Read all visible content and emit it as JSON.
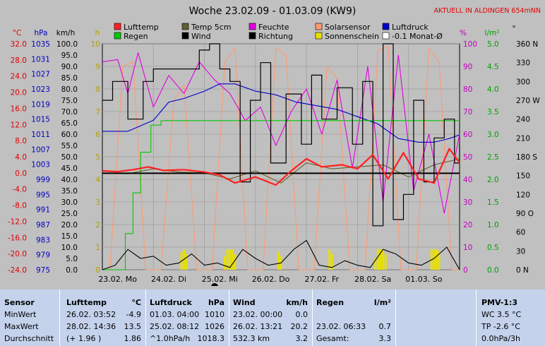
{
  "title": "Woche 23.02.09 - 01.03.09 (KW9)",
  "location_note": "AKTUELL IN ALDINGEN 654mNN",
  "colors": {
    "lufttemp": "#ff2020",
    "temp5cm": "#606030",
    "feuchte": "#e000e0",
    "solarsensor": "#ff9a70",
    "luftdruck": "#0000c8",
    "regen": "#00c800",
    "wind": "#000000",
    "richtung": "#000000",
    "sonnenschein": "#e8e000",
    "monat": "#000000",
    "grid": "#a0a0a0",
    "plot_bg": "#c0c0c0"
  },
  "legend": [
    {
      "key": "lufttemp",
      "label": "Lufttemp",
      "swatch": "#ff2020"
    },
    {
      "key": "temp5cm",
      "label": "Temp 5cm",
      "swatch": "#606030"
    },
    {
      "key": "feuchte",
      "label": "Feuchte",
      "swatch": "#e000e0"
    },
    {
      "key": "solarsensor",
      "label": "Solarsensor",
      "swatch": "#ff9a70"
    },
    {
      "key": "luftdruck",
      "label": "Luftdruck",
      "swatch": "#0000c8"
    },
    {
      "key": "regen",
      "label": "Regen",
      "swatch": "#00c800"
    },
    {
      "key": "wind",
      "label": "Wind",
      "swatch": "#000000"
    },
    {
      "key": "richtung",
      "label": "Richtung",
      "swatch": "#000000"
    },
    {
      "key": "sonnenschein",
      "label": "Sonnenschein",
      "swatch": "#e8e000"
    },
    {
      "key": "monat",
      "label": "-0.1 Monat-Ø",
      "swatch": "#ffffff"
    }
  ],
  "axes": {
    "temp": {
      "unit": "°C",
      "color": "#e00000",
      "labels": [
        "32.0",
        "28.0",
        "24.0",
        "20.0",
        "16.0",
        "12.0",
        "8.0",
        "4.0",
        "0.0",
        "-4.0",
        "-8.0",
        "-12.0",
        "-16.0",
        "-20.0",
        "-24.0"
      ]
    },
    "pressure": {
      "unit": "hPa",
      "color": "#0000c0",
      "labels": [
        "1035",
        "1031",
        "1027",
        "1023",
        "1019",
        "1015",
        "1011",
        "1007",
        "1003",
        "999",
        "995",
        "991",
        "987",
        "983",
        "979",
        "975"
      ]
    },
    "wind": {
      "unit": "km/h",
      "color": "#000000",
      "labels": [
        "100.0",
        "95.0",
        "90.0",
        "85.0",
        "80.0",
        "75.0",
        "70.0",
        "65.0",
        "60.0",
        "55.0",
        "50.0",
        "45.0",
        "40.0",
        "35.0",
        "30.0",
        "25.0",
        "20.0",
        "15.0",
        "10.0",
        "5.0",
        "0.0"
      ]
    },
    "sun": {
      "unit": "h",
      "color": "#b0a000",
      "labels": [
        "10",
        "9",
        "8",
        "7",
        "6",
        "5",
        "4",
        "3",
        "2",
        "1",
        "0"
      ]
    },
    "humidity": {
      "unit": "%",
      "color": "#c000c0",
      "labels": [
        "100",
        "90",
        "80",
        "70",
        "60",
        "50",
        "40",
        "30",
        "20",
        "10",
        "0"
      ]
    },
    "rain": {
      "unit": "l/m²",
      "color": "#00a000",
      "labels": [
        "5.0",
        "4.5",
        "4.0",
        "3.5",
        "3.0",
        "2.5",
        "2.0",
        "1.5",
        "1.0",
        "0.5",
        "0.0"
      ]
    },
    "direction": {
      "unit": "°",
      "color": "#000000",
      "labels": [
        "360 N",
        "330",
        "300",
        "270 W",
        "240",
        "210",
        "180 S",
        "150",
        "120",
        "90 O",
        "60",
        "30",
        "0 N"
      ]
    }
  },
  "x_labels": [
    "23.02. Mo",
    "24.02. Di",
    "25.02. Mi",
    "26.02. Do",
    "27.02. Fr",
    "28.02. Sa",
    "01.03. So"
  ],
  "chart_data": {
    "type": "line",
    "title": "Woche 23.02.09 - 01.03.09 (KW9)",
    "x_unit": "days since 23.02.09 00:00",
    "xlim": [
      0,
      7
    ],
    "series": [
      {
        "name": "Lufttemp",
        "unit": "°C",
        "ylim": [
          -24,
          32
        ],
        "x": [
          0,
          0.3,
          0.6,
          0.9,
          1.2,
          1.6,
          2.0,
          2.3,
          2.6,
          3.0,
          3.4,
          3.7,
          4.0,
          4.3,
          4.7,
          5.0,
          5.3,
          5.6,
          5.9,
          6.2,
          6.5,
          6.8,
          7.0
        ],
        "values": [
          0.5,
          0.3,
          0.8,
          1.5,
          0.6,
          0.8,
          0.2,
          -0.5,
          -2.5,
          -1.0,
          -3.0,
          0.5,
          3.5,
          1.5,
          2.0,
          1.0,
          4.5,
          -1.5,
          5.0,
          -1.5,
          -2.5,
          6.0,
          2.5
        ]
      },
      {
        "name": "Temp 5cm",
        "unit": "°C",
        "ylim": [
          -24,
          32
        ],
        "x": [
          0,
          0.5,
          1.0,
          1.5,
          2.0,
          2.5,
          3.0,
          3.5,
          4.0,
          4.5,
          5.0,
          5.5,
          6.0,
          6.5,
          7.0
        ],
        "values": [
          0.0,
          -0.2,
          1.0,
          0.2,
          0.0,
          -1.5,
          0.5,
          -2.5,
          2.5,
          1.0,
          1.5,
          2.0,
          -1.0,
          2.0,
          3.5
        ]
      },
      {
        "name": "Feuchte",
        "unit": "%",
        "ylim": [
          0,
          100
        ],
        "x": [
          0,
          0.3,
          0.5,
          0.7,
          1.0,
          1.3,
          1.6,
          1.9,
          2.2,
          2.5,
          2.8,
          3.1,
          3.4,
          3.7,
          4.0,
          4.3,
          4.6,
          4.9,
          5.2,
          5.5,
          5.8,
          6.1,
          6.4,
          6.7,
          7.0
        ],
        "values": [
          92,
          93,
          78,
          96,
          72,
          86,
          78,
          92,
          84,
          78,
          66,
          72,
          55,
          70,
          80,
          60,
          84,
          45,
          90,
          30,
          95,
          35,
          60,
          25,
          60
        ]
      },
      {
        "name": "Solarsensor",
        "unit": "%",
        "ylim": [
          0,
          100
        ],
        "x": [
          0,
          0.15,
          0.4,
          0.6,
          0.85,
          1.15,
          1.4,
          1.6,
          1.85,
          2.15,
          2.4,
          2.6,
          2.85,
          3.15,
          3.4,
          3.6,
          3.85,
          4.15,
          4.4,
          4.6,
          4.85,
          5.15,
          5.4,
          5.6,
          5.85,
          6.15,
          6.4,
          6.6,
          6.85,
          7.0
        ],
        "values": [
          0,
          0,
          90,
          92,
          0,
          0,
          75,
          82,
          0,
          0,
          92,
          98,
          0,
          0,
          98,
          95,
          0,
          0,
          90,
          85,
          0,
          0,
          97,
          99,
          0,
          0,
          98,
          92,
          0,
          0
        ]
      },
      {
        "name": "Luftdruck",
        "unit": "hPa",
        "ylim": [
          975,
          1037
        ],
        "x": [
          0,
          0.5,
          1.0,
          1.3,
          1.6,
          2.0,
          2.3,
          2.6,
          3.0,
          3.4,
          3.8,
          4.2,
          4.6,
          5.0,
          5.4,
          5.8,
          6.2,
          6.5,
          6.8,
          7.0
        ],
        "values": [
          1013,
          1013,
          1016,
          1021,
          1022,
          1024,
          1026,
          1026,
          1024,
          1023,
          1021,
          1020,
          1019,
          1017,
          1015,
          1011,
          1010,
          1010,
          1011,
          1012
        ]
      },
      {
        "name": "Regen",
        "unit": "l/m²",
        "ylim": [
          0,
          5
        ],
        "x": [
          0,
          0.3,
          0.45,
          0.6,
          0.75,
          0.95,
          1.15,
          1.4,
          7.0
        ],
        "values": [
          0,
          0,
          0.8,
          1.7,
          2.6,
          3.2,
          3.3,
          3.3,
          3.3
        ]
      },
      {
        "name": "Wind",
        "unit": "km/h",
        "ylim": [
          0,
          100
        ],
        "x": [
          0,
          0.25,
          0.5,
          0.75,
          1.0,
          1.25,
          1.5,
          1.75,
          2.0,
          2.25,
          2.5,
          2.75,
          3.0,
          3.25,
          3.5,
          3.75,
          4.0,
          4.25,
          4.5,
          4.75,
          5.0,
          5.25,
          5.5,
          5.75,
          6.0,
          6.25,
          6.5,
          6.75,
          7.0
        ],
        "values": [
          0,
          2,
          9,
          5,
          6,
          2,
          3,
          7,
          2,
          3,
          1,
          9,
          5,
          2,
          3,
          9,
          13,
          2,
          1,
          4,
          2,
          1,
          9,
          7,
          3,
          2,
          5,
          10,
          0
        ]
      },
      {
        "name": "Richtung",
        "unit": "°",
        "ylim": [
          0,
          360
        ],
        "x": [
          0,
          0.2,
          0.5,
          0.8,
          1.0,
          1.3,
          1.6,
          1.9,
          2.1,
          2.3,
          2.5,
          2.7,
          2.9,
          3.1,
          3.3,
          3.6,
          3.9,
          4.1,
          4.3,
          4.6,
          4.9,
          5.1,
          5.3,
          5.5,
          5.7,
          5.9,
          6.1,
          6.3,
          6.5,
          6.7,
          6.9,
          7.0
        ],
        "values": [
          270,
          300,
          240,
          300,
          320,
          320,
          320,
          350,
          360,
          320,
          300,
          140,
          270,
          330,
          170,
          280,
          200,
          310,
          240,
          290,
          200,
          300,
          70,
          360,
          80,
          120,
          270,
          140,
          210,
          240,
          170,
          200
        ]
      },
      {
        "name": "Sonnenschein",
        "unit": "h",
        "ylim": [
          0,
          10
        ],
        "x": [
          1.55,
          1.6,
          1.65,
          2.4,
          2.45,
          2.5,
          2.55,
          2.6,
          3.45,
          3.5,
          4.45,
          4.5,
          5.35,
          5.4,
          5.45,
          5.5,
          5.55,
          6.45,
          6.5,
          6.55,
          6.6
        ],
        "values": [
          0.8,
          0.9,
          0.7,
          0.6,
          0.9,
          0.9,
          0.9,
          0.7,
          0.8,
          0.6,
          0.9,
          0.7,
          0.5,
          0.9,
          0.9,
          0.9,
          0.7,
          0.9,
          0.9,
          0.9,
          0.8
        ]
      },
      {
        "name": "-0.1 Monat-Ø",
        "unit": "°C",
        "ylim": [
          -24,
          32
        ],
        "x": [
          0,
          7
        ],
        "values": [
          -0.1,
          -0.1
        ]
      }
    ]
  },
  "stats": {
    "sensor": {
      "header": "Sensor",
      "rows": [
        "MinWert",
        "MaxWert",
        "Durchschnitt"
      ]
    },
    "lufttemp": {
      "header": "Lufttemp",
      "unit": "°C",
      "rows": [
        [
          "26.02.  03:52",
          "-4.9"
        ],
        [
          "28.02.  14:36",
          "13.5"
        ],
        [
          "(+ 1.96 )",
          "1.86"
        ]
      ]
    },
    "luftdruck": {
      "header": "Luftdruck",
      "unit": "hPa",
      "rows": [
        [
          "01.03.  04:00",
          "1010"
        ],
        [
          "25.02.  08:12",
          "1026"
        ],
        [
          "^1.0hPa/h",
          "1018.3"
        ]
      ]
    },
    "wind": {
      "header": "Wind",
      "unit": "km/h",
      "rows": [
        [
          "23.02.  00:00",
          "0.0"
        ],
        [
          "26.02.  13:21",
          "20.2"
        ],
        [
          "532.3 km",
          "3.2"
        ]
      ]
    },
    "regen": {
      "header": "Regen",
      "unit": "l/m²",
      "rows": [
        [
          "",
          ""
        ],
        [
          "23.02.  06:33",
          "0.7"
        ],
        [
          "Gesamt:",
          "3.3"
        ]
      ]
    },
    "pmv": {
      "header": "PMV-1:3",
      "rows": [
        "WC 3.5 °C",
        "TP -2.6 °C",
        "0.0hPa/3h"
      ]
    }
  }
}
